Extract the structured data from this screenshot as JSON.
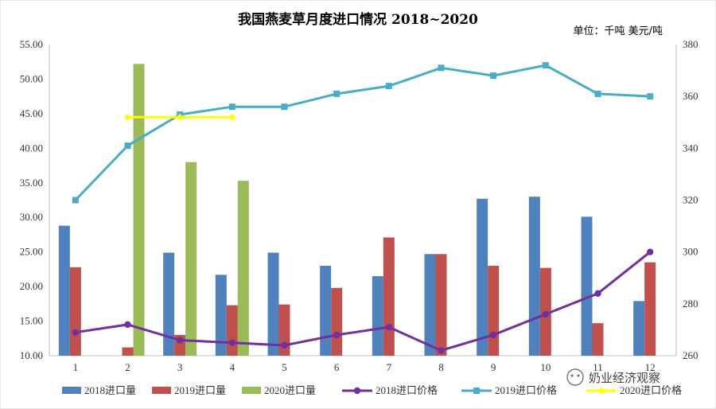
{
  "chart_data": {
    "type": "bar",
    "title": "我国燕麦草月度进口情况 2018~2020",
    "unit_label": "单位：千吨  美元/吨",
    "categories": [
      "1",
      "2",
      "3",
      "4",
      "5",
      "6",
      "7",
      "8",
      "9",
      "10",
      "11",
      "12"
    ],
    "left_axis": {
      "min": 10,
      "max": 55,
      "step": 5,
      "ticks": [
        "10.00",
        "15.00",
        "20.00",
        "25.00",
        "30.00",
        "35.00",
        "40.00",
        "45.00",
        "50.00",
        "55.00"
      ]
    },
    "right_axis": {
      "min": 260,
      "max": 380,
      "step": 20,
      "ticks": [
        "260",
        "280",
        "300",
        "320",
        "340",
        "360",
        "380"
      ]
    },
    "bar_series": [
      {
        "name": "2018进口量",
        "color": "#4F81BD",
        "values": [
          28.8,
          null,
          24.9,
          21.7,
          24.9,
          23.0,
          21.5,
          24.7,
          32.7,
          33.0,
          30.1,
          17.9
        ]
      },
      {
        "name": "2019进口量",
        "color": "#C0504D",
        "values": [
          22.8,
          11.2,
          13.0,
          17.3,
          17.4,
          19.8,
          27.1,
          24.7,
          23.0,
          22.7,
          14.7,
          23.5
        ]
      },
      {
        "name": "2020进口量",
        "color": "#9BBB59",
        "values": [
          null,
          52.2,
          38.0,
          35.3,
          null,
          null,
          null,
          null,
          null,
          null,
          null,
          null
        ]
      }
    ],
    "line_series": [
      {
        "name": "2018进口价格",
        "color": "#7030A0",
        "marker": "circle",
        "values": [
          269,
          272,
          266,
          265,
          264,
          268,
          271,
          262,
          268,
          276,
          284,
          300
        ]
      },
      {
        "name": "2019进口价格",
        "color": "#4BACC6",
        "marker": "square",
        "values": [
          320,
          341,
          353,
          356,
          356,
          361,
          364,
          371,
          368,
          372,
          361,
          360
        ]
      },
      {
        "name": "2020进口价格",
        "color": "#FFFF00",
        "marker": "diamond",
        "values": [
          null,
          352,
          352,
          352,
          null,
          null,
          null,
          null,
          null,
          null,
          null,
          null
        ]
      }
    ]
  },
  "watermark": "奶业经济观察"
}
